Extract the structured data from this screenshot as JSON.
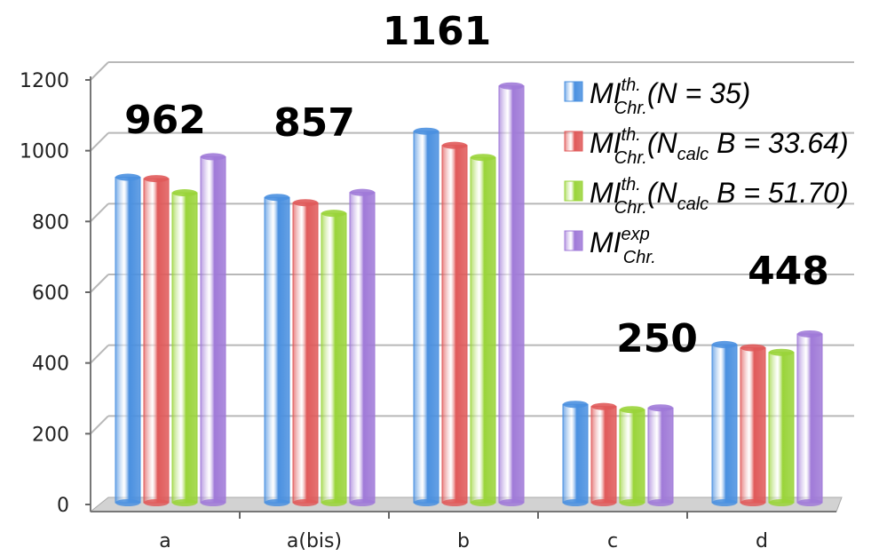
{
  "chart_data": {
    "type": "bar",
    "categories": [
      "a",
      "a(bis)",
      "b",
      "c",
      "d"
    ],
    "series": [
      {
        "name_parts": {
          "base": "MI",
          "sup": "th.",
          "sub": "Chr.",
          "paren": "(N = 35)"
        },
        "color": "#4a90e0",
        "values": [
          910,
          853,
          1040,
          268,
          437
        ]
      },
      {
        "name_parts": {
          "base": "MI",
          "sup": "th.",
          "sub": "Chr.",
          "paren_pre": "(N",
          "paren_sub": "calc",
          "paren_post": " B = 33.64)"
        },
        "color": "#e05a5a",
        "values": [
          906,
          838,
          1000,
          262,
          428
        ]
      },
      {
        "name_parts": {
          "base": "MI",
          "sup": "th.",
          "sub": "Chr.",
          "paren_pre": "(N",
          "paren_sub": "calc",
          "paren_post": " B = 51.70)"
        },
        "color": "#9ad43a",
        "values": [
          866,
          808,
          966,
          253,
          415
        ]
      },
      {
        "name_parts": {
          "base": "MI",
          "sup": "exp",
          "sub": "Chr."
        },
        "color": "#a07ad8",
        "values": [
          968,
          867,
          1168,
          258,
          467
        ]
      }
    ],
    "ylim": [
      0,
      1200
    ],
    "yticks": [
      "0",
      "200",
      "400",
      "600",
      "800",
      "1000",
      "1200"
    ],
    "grid": true,
    "legend_position": "top-right",
    "annotations": [
      {
        "text": "962",
        "category": "a"
      },
      {
        "text": "857",
        "category": "a(bis)"
      },
      {
        "text": "1161",
        "category": "b"
      },
      {
        "text": "250",
        "category": "c"
      },
      {
        "text": "448",
        "category": "d"
      }
    ]
  }
}
